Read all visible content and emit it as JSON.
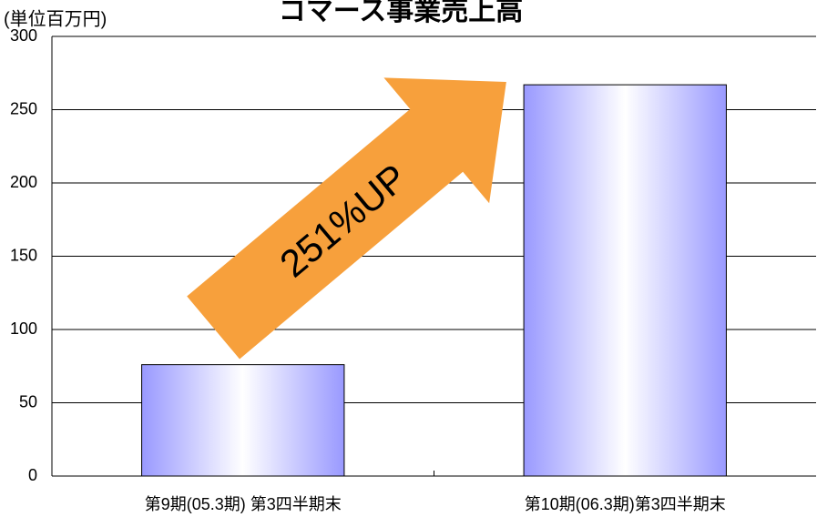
{
  "chart_data": {
    "type": "bar",
    "title": "コマース事業売上高",
    "y_label": "(単位百万円)",
    "annotation": "251%UP",
    "categories": [
      "第9期(05.3期) 第3四半期末",
      "第10期(06.3期)第3四半期末"
    ],
    "values": [
      76,
      267
    ],
    "color": "#9999ff",
    "ylim": [
      0,
      300
    ],
    "yticks": [
      0,
      50,
      100,
      150,
      200,
      250,
      300
    ],
    "grid": true
  }
}
